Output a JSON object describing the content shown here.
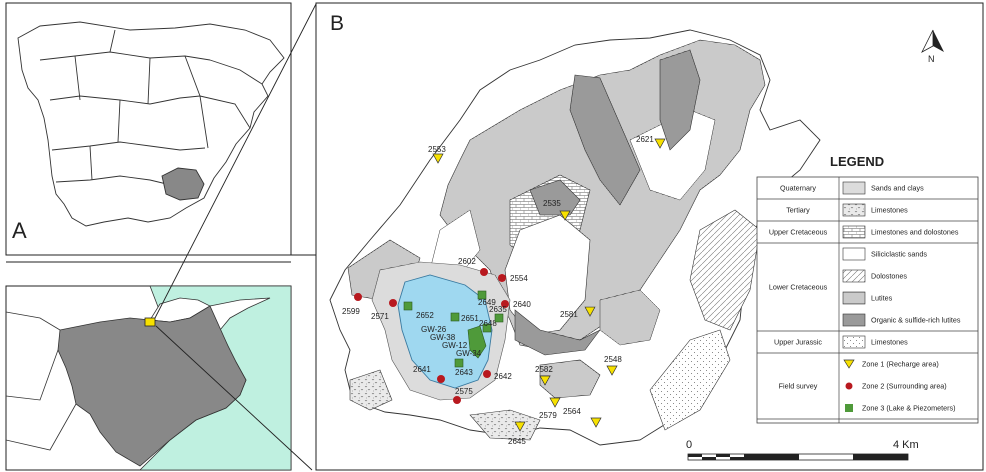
{
  "panel_a": {
    "label": "A"
  },
  "panel_b": {
    "label": "B"
  },
  "north_arrow": {
    "label": "N"
  },
  "scale_bar": {
    "start": "0",
    "end": "4 Km"
  },
  "legend": {
    "title": "LEGEND",
    "rows": [
      {
        "category": "Quaternary",
        "item": "Sands and clays",
        "pattern": "sands"
      },
      {
        "category": "Tertiary",
        "item": "Limestones",
        "pattern": "tert-lime"
      },
      {
        "category": "Upper Cretaceous",
        "item": "Limestones and dolostones",
        "pattern": "ucret"
      },
      {
        "category": "Lower Cretaceous",
        "item": "Siliciclastic sands",
        "pattern": "silic"
      },
      {
        "category": "",
        "item": "Dolostones",
        "pattern": "dolo"
      },
      {
        "category": "",
        "item": "Lutites",
        "pattern": "lutites"
      },
      {
        "category": "",
        "item": "Organic & sulfide-rich lutites",
        "pattern": "organic"
      },
      {
        "category": "Upper Jurassic",
        "item": "Limestones",
        "pattern": "jurassic"
      },
      {
        "category": "Field survey",
        "item": "Zone 1 (Recharge area)",
        "pattern": "zone1"
      },
      {
        "category": "",
        "item": "Zone 2 (Surrounding area)",
        "pattern": "zone2"
      },
      {
        "category": "",
        "item": "Zone 3 (Lake & Piezometers)",
        "pattern": "zone3"
      }
    ]
  },
  "colors": {
    "province_fill": "#888888",
    "sea": "#bff0e0",
    "lake": "#9fd8f0",
    "zone1": "#f7e100",
    "zone2": "#b8191f",
    "zone3": "#4f9a3a",
    "organic": "#9a9a9a"
  },
  "sites": {
    "zone1": [
      "2553",
      "2621",
      "2535",
      "2581",
      "2548",
      "2582",
      "2579",
      "2564",
      "2645"
    ],
    "zone2": [
      "2602",
      "2554",
      "2640",
      "2599",
      "2571",
      "2641",
      "2642",
      "2575"
    ],
    "zone3": [
      "2649",
      "2652",
      "2651",
      "2648",
      "2635",
      "2643"
    ],
    "piezometers": [
      "GW-26",
      "GW-38",
      "GW-12",
      "GW-34"
    ]
  }
}
